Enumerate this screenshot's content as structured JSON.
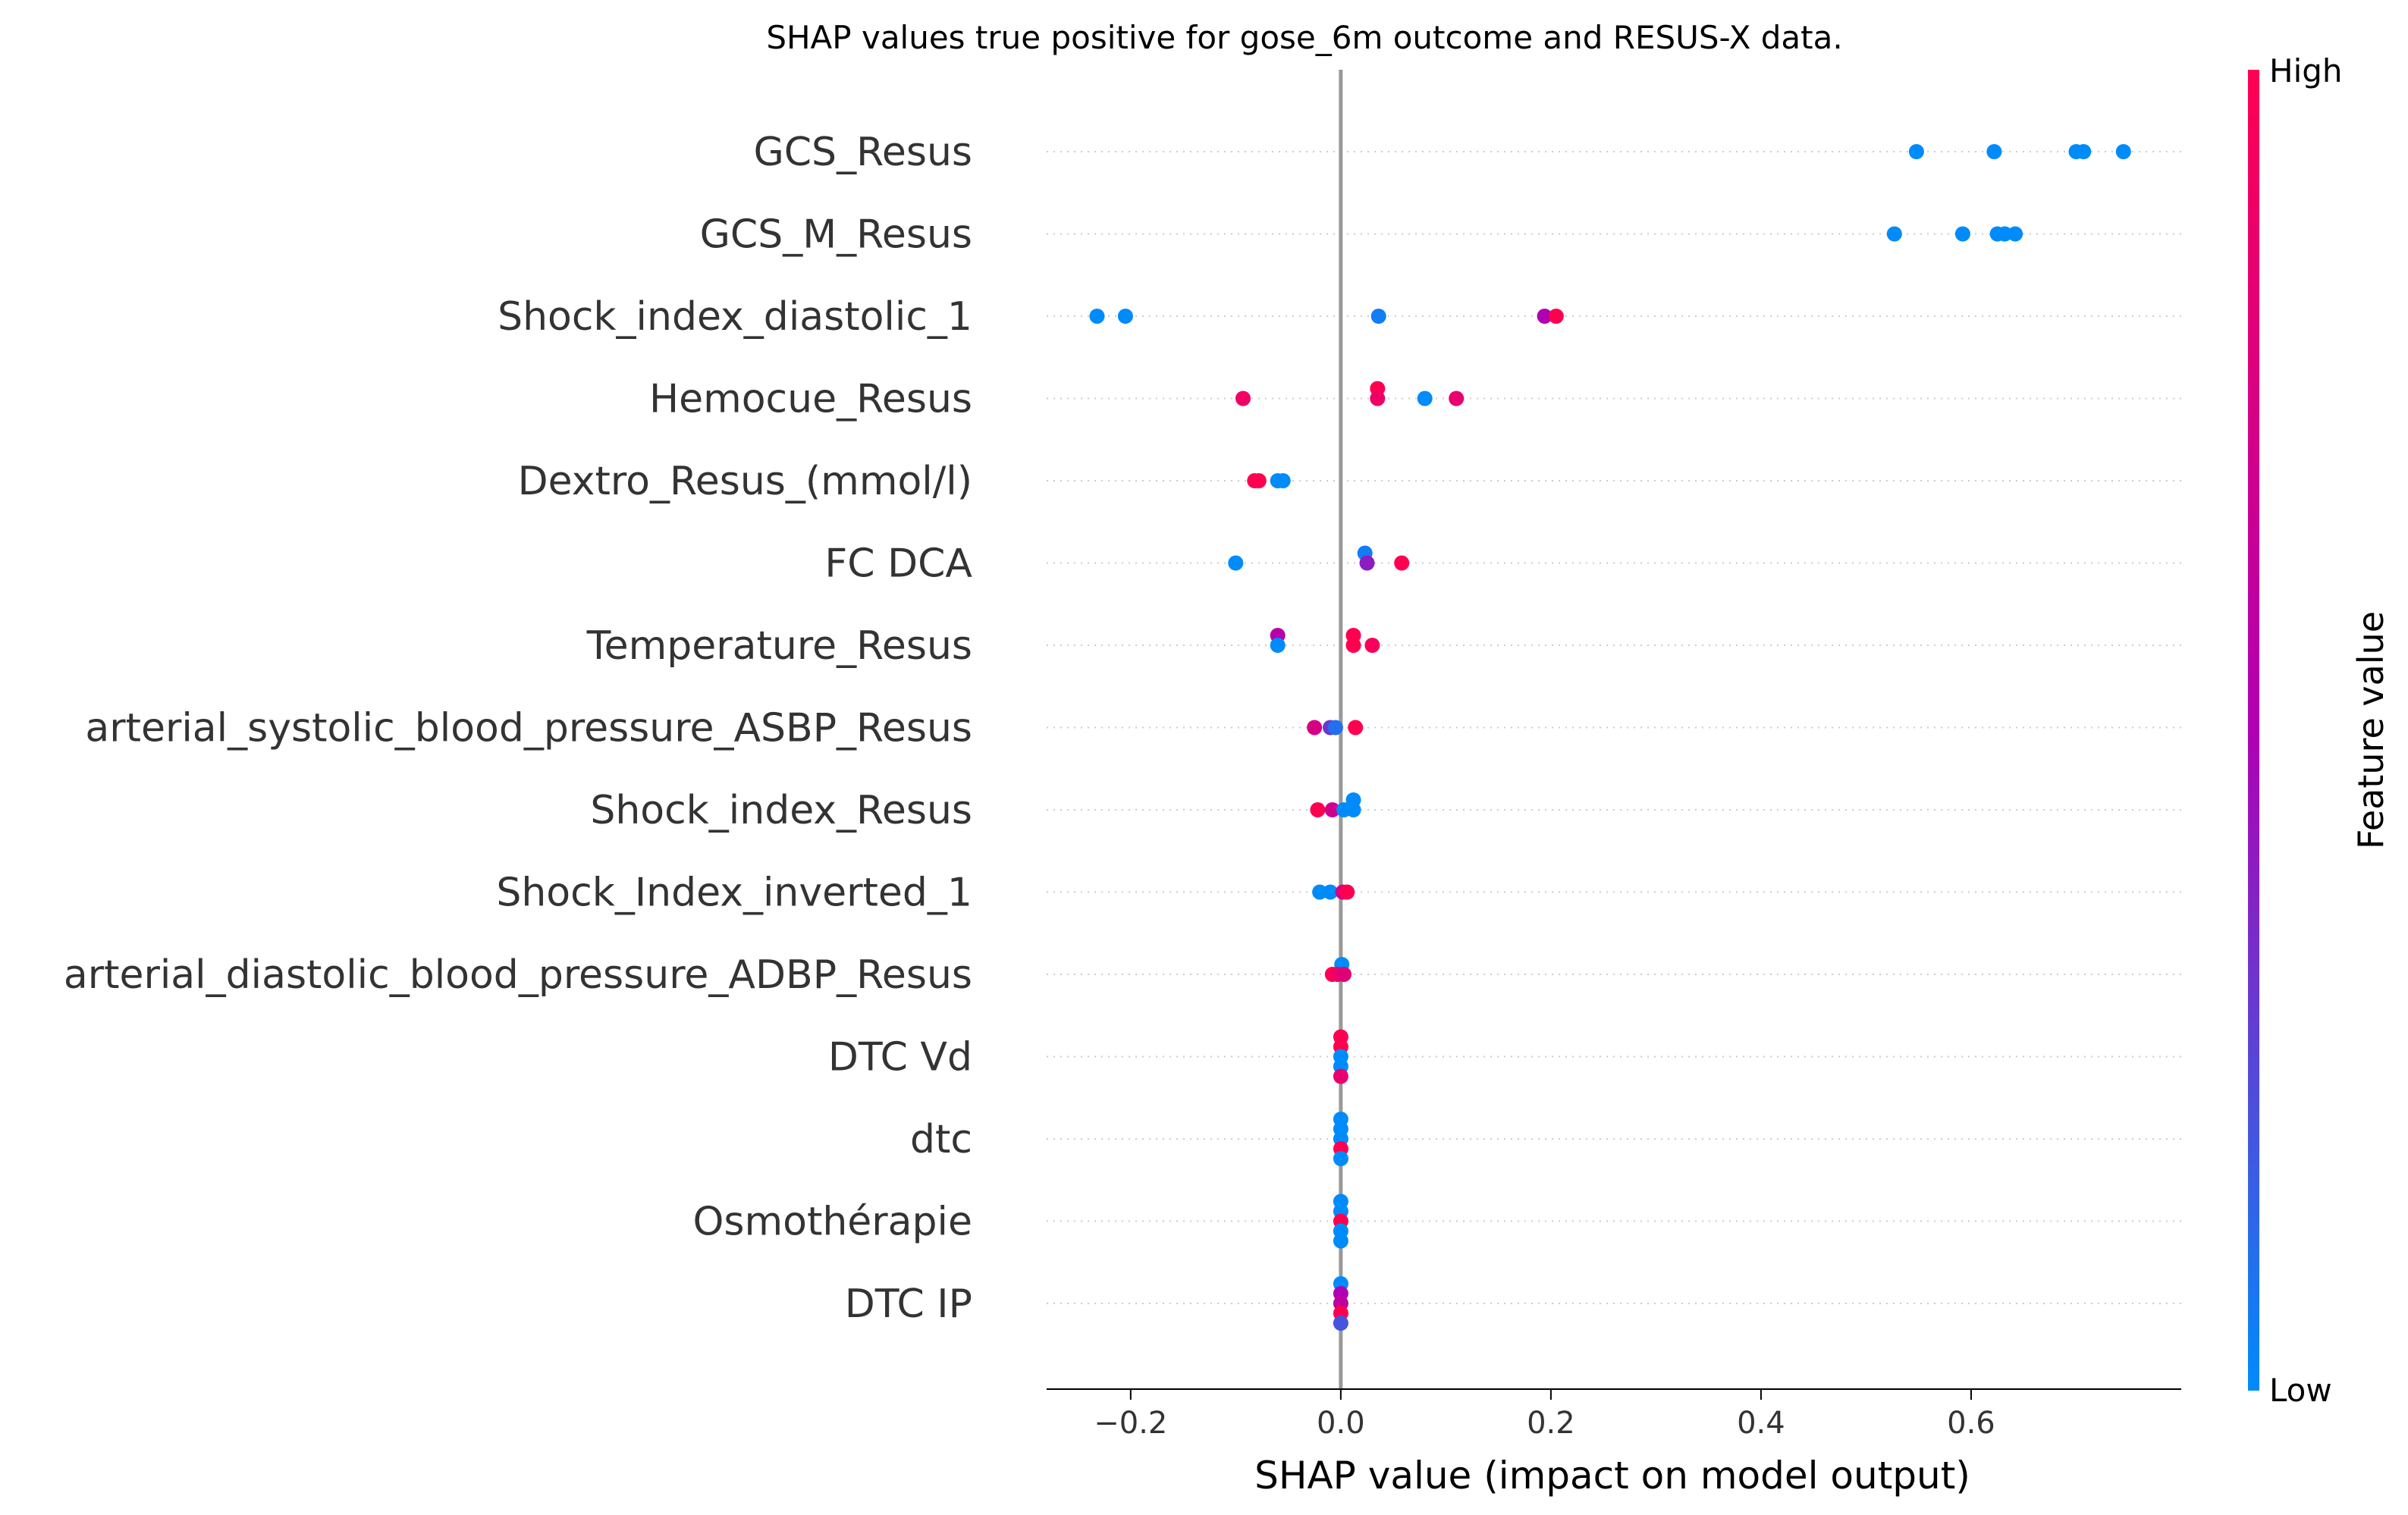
{
  "chart_data": {
    "type": "scatter",
    "title": "SHAP values true positive for gose_6m outcome and RESUS-X data.",
    "xlabel": "SHAP value (impact on model output)",
    "ylabel": "",
    "xlim": [
      -0.28,
      0.8
    ],
    "xticks": [
      -0.2,
      0.0,
      0.2,
      0.4,
      0.6
    ],
    "xtick_labels": [
      "−0.2",
      "0.0",
      "0.2",
      "0.4",
      "0.6"
    ],
    "grid": "dotted horizontal per feature",
    "zero_line": 0.0,
    "colorbar": {
      "label": "Feature value",
      "high_label": "High",
      "low_label": "Low",
      "high_color": "#ff0051",
      "low_color": "#008bfb"
    },
    "features": [
      {
        "name": "GCS_Resus",
        "points": [
          {
            "x": 0.548,
            "v": 0.0,
            "j": 0.0
          },
          {
            "x": 0.622,
            "v": 0.0,
            "j": 0.0
          },
          {
            "x": 0.7,
            "v": 0.0,
            "j": 0.0
          },
          {
            "x": 0.707,
            "v": 0.0,
            "j": 0.0
          },
          {
            "x": 0.745,
            "v": 0.0,
            "j": 0.0
          }
        ]
      },
      {
        "name": "GCS_M_Resus",
        "points": [
          {
            "x": 0.527,
            "v": 0.0,
            "j": 0.0
          },
          {
            "x": 0.592,
            "v": 0.0,
            "j": 0.0
          },
          {
            "x": 0.625,
            "v": 0.0,
            "j": 0.0
          },
          {
            "x": 0.632,
            "v": 0.0,
            "j": 0.0
          },
          {
            "x": 0.642,
            "v": 0.0,
            "j": 0.0
          }
        ]
      },
      {
        "name": "Shock_index_diastolic_1",
        "points": [
          {
            "x": -0.232,
            "v": 0.0,
            "j": 0.0
          },
          {
            "x": -0.205,
            "v": 0.0,
            "j": 0.0
          },
          {
            "x": 0.036,
            "v": 0.05,
            "j": 0.0
          },
          {
            "x": 0.194,
            "v": 0.5,
            "j": 0.0
          },
          {
            "x": 0.205,
            "v": 1.0,
            "j": 0.0
          }
        ]
      },
      {
        "name": "Hemocue_Resus",
        "points": [
          {
            "x": 0.035,
            "v": 1.0,
            "j": -1
          },
          {
            "x": -0.093,
            "v": 0.9,
            "j": 0.0
          },
          {
            "x": 0.035,
            "v": 0.9,
            "j": 0.0
          },
          {
            "x": 0.08,
            "v": 0.0,
            "j": 0.0
          },
          {
            "x": 0.11,
            "v": 0.85,
            "j": 0.0
          }
        ]
      },
      {
        "name": "Dextro_Resus_(mmol/l)",
        "points": [
          {
            "x": -0.082,
            "v": 1.0,
            "j": 0.0
          },
          {
            "x": -0.078,
            "v": 1.0,
            "j": 0.0
          },
          {
            "x": -0.06,
            "v": 0.0,
            "j": 0.0
          },
          {
            "x": -0.055,
            "v": 0.0,
            "j": 0.0
          }
        ]
      },
      {
        "name": "FC  DCA",
        "points": [
          {
            "x": 0.023,
            "v": 0.05,
            "j": -1
          },
          {
            "x": -0.1,
            "v": 0.0,
            "j": 0.0
          },
          {
            "x": 0.025,
            "v": 0.4,
            "j": 0.0
          },
          {
            "x": 0.058,
            "v": 1.0,
            "j": 0.0
          }
        ]
      },
      {
        "name": "Temperature_Resus",
        "points": [
          {
            "x": -0.06,
            "v": 0.55,
            "j": -1
          },
          {
            "x": 0.012,
            "v": 1.0,
            "j": -1
          },
          {
            "x": -0.06,
            "v": 0.0,
            "j": 0.0
          },
          {
            "x": 0.012,
            "v": 1.0,
            "j": 0.0
          },
          {
            "x": 0.03,
            "v": 0.95,
            "j": 0.0
          }
        ]
      },
      {
        "name": "arterial_systolic_blood_pressure_ASBP_Resus",
        "points": [
          {
            "x": -0.025,
            "v": 0.75,
            "j": 0.0
          },
          {
            "x": -0.01,
            "v": 0.3,
            "j": 0.0
          },
          {
            "x": -0.005,
            "v": 0.1,
            "j": 0.0
          },
          {
            "x": 0.014,
            "v": 1.0,
            "j": 0.0
          }
        ]
      },
      {
        "name": "Shock_index_Resus",
        "points": [
          {
            "x": 0.012,
            "v": 0.0,
            "j": -1
          },
          {
            "x": -0.022,
            "v": 1.0,
            "j": 0.0
          },
          {
            "x": -0.008,
            "v": 0.7,
            "j": 0.0
          },
          {
            "x": 0.003,
            "v": 0.0,
            "j": 0.0
          },
          {
            "x": 0.012,
            "v": 0.0,
            "j": 0.0
          }
        ]
      },
      {
        "name": "Shock_Index_inverted_1",
        "points": [
          {
            "x": -0.02,
            "v": 0.0,
            "j": 0.0
          },
          {
            "x": -0.01,
            "v": 0.0,
            "j": 0.0
          },
          {
            "x": 0.002,
            "v": 0.7,
            "j": 0.0
          },
          {
            "x": 0.006,
            "v": 1.0,
            "j": 0.0
          }
        ]
      },
      {
        "name": "arterial_diastolic_blood_pressure_ADBP_Resus",
        "points": [
          {
            "x": 0.001,
            "v": 0.0,
            "j": -1
          },
          {
            "x": -0.008,
            "v": 1.0,
            "j": 0.0
          },
          {
            "x": -0.003,
            "v": 0.9,
            "j": 0.0
          },
          {
            "x": 0.003,
            "v": 0.8,
            "j": 0.0
          }
        ]
      },
      {
        "name": "DTC Vd",
        "points": [
          {
            "x": 0.0,
            "v": 1.0,
            "j": -2
          },
          {
            "x": 0.0,
            "v": 1.0,
            "j": -1
          },
          {
            "x": 0.0,
            "v": 0.0,
            "j": 0.0
          },
          {
            "x": 0.0,
            "v": 0.0,
            "j": 1
          },
          {
            "x": 0.0,
            "v": 0.85,
            "j": 2
          }
        ]
      },
      {
        "name": "dtc",
        "points": [
          {
            "x": 0.0,
            "v": 0.0,
            "j": -2
          },
          {
            "x": 0.0,
            "v": 0.0,
            "j": -1
          },
          {
            "x": 0.0,
            "v": 0.0,
            "j": 0.0
          },
          {
            "x": 0.0,
            "v": 1.0,
            "j": 1
          },
          {
            "x": 0.0,
            "v": 0.0,
            "j": 2
          }
        ]
      },
      {
        "name": "Osmothérapie",
        "points": [
          {
            "x": 0.0,
            "v": 0.0,
            "j": -2
          },
          {
            "x": 0.0,
            "v": 0.0,
            "j": -1
          },
          {
            "x": 0.0,
            "v": 1.0,
            "j": 0.0
          },
          {
            "x": 0.0,
            "v": 0.0,
            "j": 1
          },
          {
            "x": 0.0,
            "v": 0.0,
            "j": 2
          }
        ]
      },
      {
        "name": "DTC IP",
        "points": [
          {
            "x": 0.0,
            "v": 0.0,
            "j": -2
          },
          {
            "x": 0.0,
            "v": 0.5,
            "j": -1
          },
          {
            "x": 0.0,
            "v": 0.6,
            "j": 0.0
          },
          {
            "x": 0.0,
            "v": 1.0,
            "j": 1
          },
          {
            "x": 0.0,
            "v": 0.2,
            "j": 2
          }
        ]
      }
    ]
  }
}
